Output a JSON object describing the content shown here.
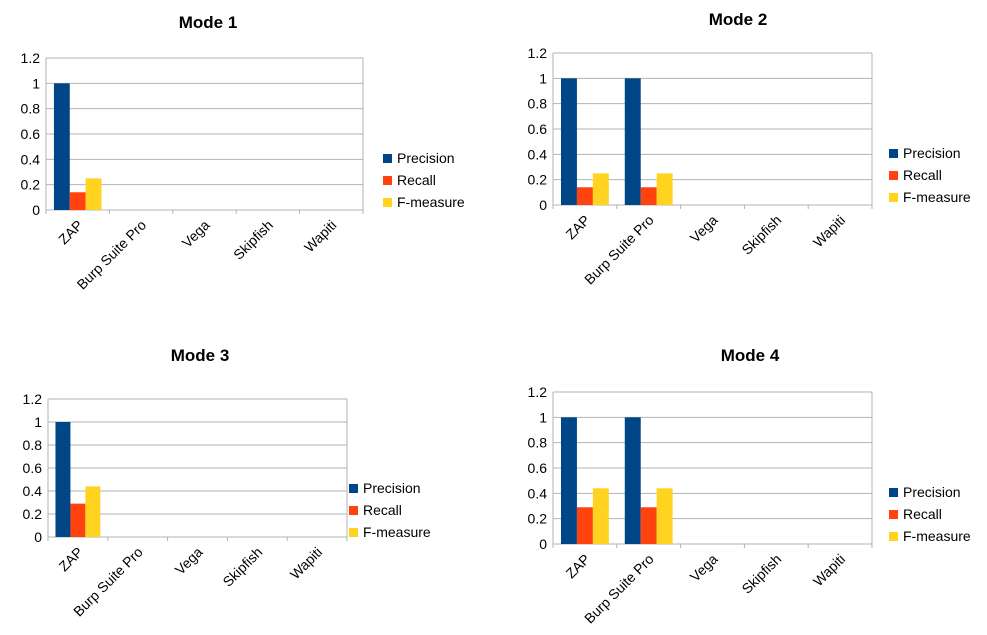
{
  "colors": {
    "precision": "#004586",
    "recall": "#ff420e",
    "fmeasure": "#ffd320",
    "grid": "#b3b3b3"
  },
  "chart_data": [
    {
      "type": "bar",
      "title": "Mode 1",
      "categories": [
        "ZAP",
        "Burp Suite Pro",
        "Vega",
        "Skipfish",
        "Wapiti"
      ],
      "series": [
        {
          "name": "Precision",
          "values": [
            1,
            0,
            0,
            0,
            0
          ]
        },
        {
          "name": "Recall",
          "values": [
            0.14,
            0,
            0,
            0,
            0
          ]
        },
        {
          "name": "F-measure",
          "values": [
            0.25,
            0,
            0,
            0,
            0
          ]
        }
      ],
      "ylim": [
        0,
        1.2
      ],
      "yticks": [
        "0",
        "0.2",
        "0.4",
        "0.6",
        "0.8",
        "1",
        "1.2"
      ],
      "grid": true,
      "legend": "right"
    },
    {
      "type": "bar",
      "title": "Mode 2",
      "categories": [
        "ZAP",
        "Burp Suite Pro",
        "Vega",
        "Skipfish",
        "Wapiti"
      ],
      "series": [
        {
          "name": "Precision",
          "values": [
            1,
            1,
            0,
            0,
            0
          ]
        },
        {
          "name": "Recall",
          "values": [
            0.14,
            0.14,
            0,
            0,
            0
          ]
        },
        {
          "name": "F-measure",
          "values": [
            0.25,
            0.25,
            0,
            0,
            0
          ]
        }
      ],
      "ylim": [
        0,
        1.2
      ],
      "yticks": [
        "0",
        "0.2",
        "0.4",
        "0.6",
        "0.8",
        "1",
        "1.2"
      ],
      "grid": true,
      "legend": "right"
    },
    {
      "type": "bar",
      "title": "Mode 3",
      "categories": [
        "ZAP",
        "Burp Suite Pro",
        "Vega",
        "Skipfish",
        "Wapiti"
      ],
      "series": [
        {
          "name": "Precision",
          "values": [
            1,
            0,
            0,
            0,
            0
          ]
        },
        {
          "name": "Recall",
          "values": [
            0.29,
            0,
            0,
            0,
            0
          ]
        },
        {
          "name": "F-measure",
          "values": [
            0.44,
            0,
            0,
            0,
            0
          ]
        }
      ],
      "ylim": [
        0,
        1.2
      ],
      "yticks": [
        "0",
        "0.2",
        "0.4",
        "0.6",
        "0.8",
        "1",
        "1.2"
      ],
      "grid": true,
      "legend": "right"
    },
    {
      "type": "bar",
      "title": "Mode 4",
      "categories": [
        "ZAP",
        "Burp Suite Pro",
        "Vega",
        "Skipfish",
        "Wapiti"
      ],
      "series": [
        {
          "name": "Precision",
          "values": [
            1,
            1,
            0,
            0,
            0
          ]
        },
        {
          "name": "Recall",
          "values": [
            0.29,
            0.29,
            0,
            0,
            0
          ]
        },
        {
          "name": "F-measure",
          "values": [
            0.44,
            0.44,
            0,
            0,
            0
          ]
        }
      ],
      "ylim": [
        0,
        1.2
      ],
      "yticks": [
        "0",
        "0.2",
        "0.4",
        "0.6",
        "0.8",
        "1",
        "1.2"
      ],
      "grid": true,
      "legend": "right"
    }
  ]
}
